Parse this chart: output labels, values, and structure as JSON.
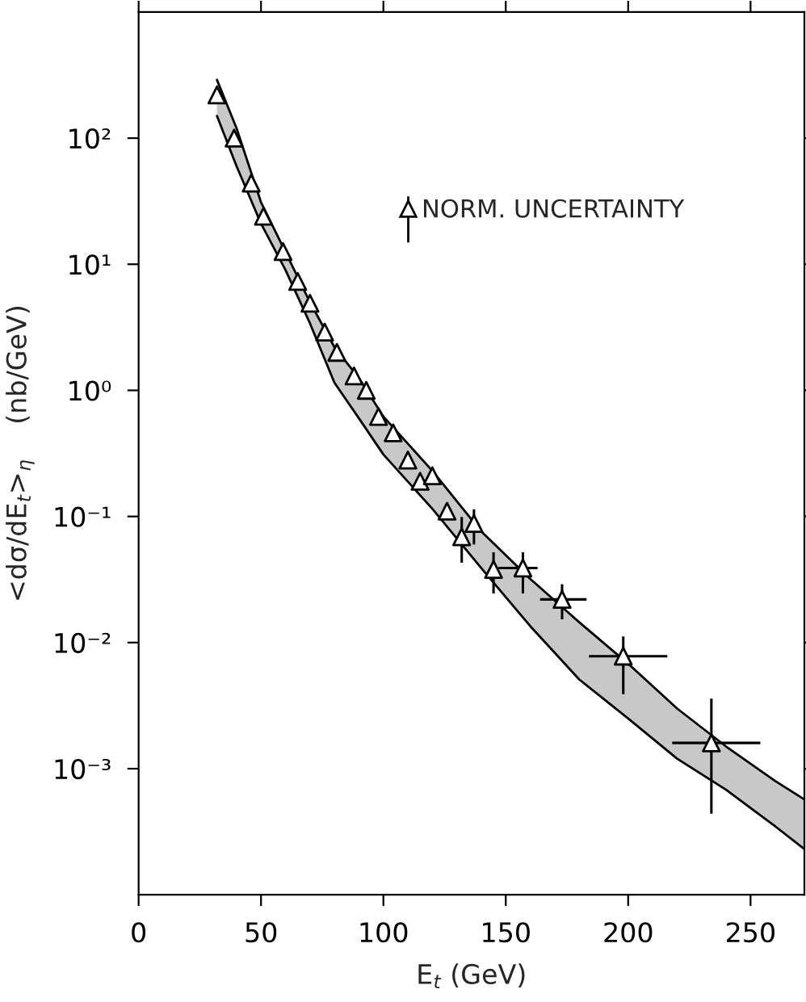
{
  "chart_data": {
    "type": "scatter",
    "xlabel": "E$_{t}$ (GeV)",
    "ylabel": "<dσ/dE$_{t}$>$_{η}$    (nb/GeV)",
    "annotations": [
      "NORM. UNCERTAINTY"
    ],
    "log": "y",
    "xlim": [
      0,
      272
    ],
    "xticks": [
      0,
      50,
      100,
      150,
      200,
      250
    ],
    "ylim": [
      0.0001,
      1000
    ],
    "yticks": [
      {
        "value": 0.001,
        "label": "10⁻³"
      },
      {
        "value": 0.01,
        "label": "10⁻²"
      },
      {
        "value": 0.1,
        "label": "10⁻¹"
      },
      {
        "value": 1,
        "label": "10⁰"
      },
      {
        "value": 10,
        "label": "10¹"
      },
      {
        "value": 100,
        "label": "10²"
      }
    ],
    "grid": false,
    "legend": false,
    "series": [
      {
        "type": "line",
        "color": "#000000",
        "marker": "none",
        "line_style": "solid",
        "x": [
          32,
          40,
          50,
          60,
          70,
          80,
          90,
          100,
          120,
          140,
          160,
          180,
          200,
          220,
          240,
          260,
          272
        ],
        "values": [
          290,
          120,
          31,
          12.5,
          5.0,
          2.2,
          1.25,
          0.62,
          0.23,
          0.076,
          0.032,
          0.0145,
          0.0068,
          0.003,
          0.0015,
          0.0008,
          0.00057
        ]
      },
      {
        "type": "line",
        "color": "#000000",
        "marker": "none",
        "line_style": "solid",
        "x": [
          32,
          40,
          50,
          60,
          70,
          80,
          90,
          100,
          120,
          140,
          160,
          180,
          200,
          220,
          240,
          260,
          272
        ],
        "values": [
          150,
          60,
          21,
          9.0,
          3.4,
          1.15,
          0.6,
          0.31,
          0.115,
          0.039,
          0.0135,
          0.0051,
          0.0025,
          0.0012,
          0.00068,
          0.00035,
          0.00023
        ],
        "lower": [
          150,
          60,
          21,
          9.0,
          3.4,
          1.15,
          0.6,
          0.31,
          0.115,
          0.039,
          0.0135,
          0.0051,
          0.0025,
          0.0012,
          0.00068,
          0.00035,
          0.00023
        ],
        "upper": [
          290,
          120,
          31,
          12.5,
          5.0,
          2.2,
          1.25,
          0.62,
          0.23,
          0.076,
          0.032,
          0.0145,
          0.0068,
          0.003,
          0.0015,
          0.0008,
          0.00057
        ]
      },
      {
        "type": "scatter",
        "color": "#000000",
        "marker": "triangle",
        "x": [
          32,
          39,
          46,
          51,
          59,
          65,
          70,
          76,
          81,
          88,
          93,
          98,
          104,
          110,
          115,
          120,
          126,
          132,
          137,
          145,
          157,
          173,
          198,
          234
        ],
        "values": [
          220,
          100,
          44,
          24,
          12.6,
          7.3,
          4.9,
          2.9,
          2.0,
          1.3,
          1.0,
          0.62,
          0.46,
          0.28,
          0.19,
          0.21,
          0.11,
          0.069,
          0.088,
          0.038,
          0.039,
          0.022,
          0.0078,
          0.0016
        ],
        "errors": [
          null,
          null,
          null,
          null,
          null,
          null,
          null,
          null,
          null,
          null,
          null,
          null,
          null,
          null,
          null,
          null,
          null,
          [
            0.043,
            0.099
          ],
          [
            0.06,
            0.114
          ],
          [
            0.0245,
            0.052
          ],
          [
            0.0245,
            0.052
          ],
          [
            0.0153,
            0.029
          ],
          [
            0.0039,
            0.0112
          ],
          [
            0.00044,
            0.0036
          ]
        ],
        "xerrors": [
          null,
          null,
          null,
          null,
          null,
          null,
          null,
          null,
          null,
          null,
          null,
          null,
          null,
          null,
          null,
          null,
          null,
          null,
          null,
          null,
          [
            147,
            163
          ],
          [
            164,
            183
          ],
          [
            184,
            216
          ],
          [
            218,
            254
          ]
        ]
      }
    ]
  }
}
